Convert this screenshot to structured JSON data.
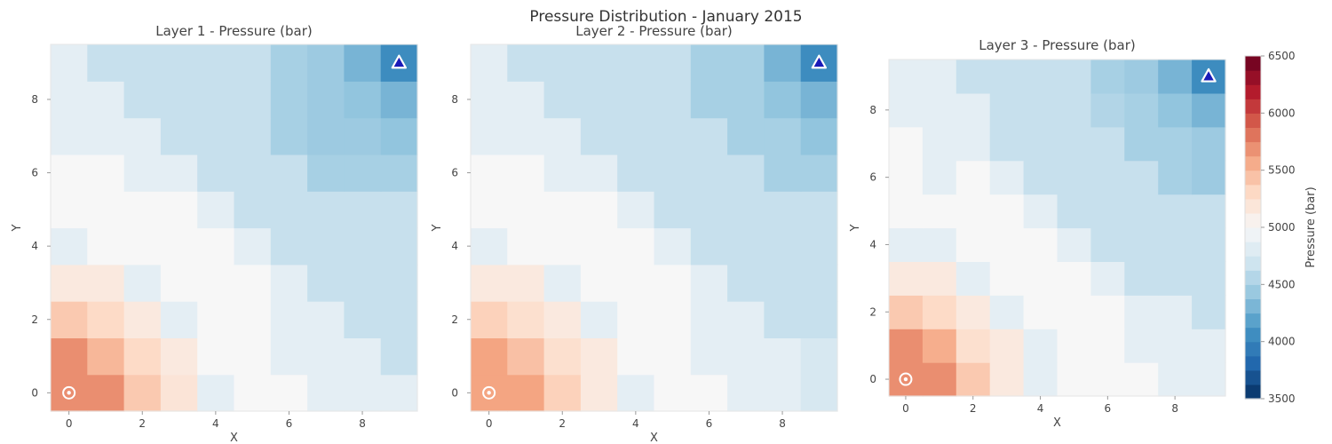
{
  "figure": {
    "title": "Pressure Distribution - January 2015"
  },
  "colormap": {
    "stops": [
      "#053061",
      "#2166ac",
      "#4393c3",
      "#92c5de",
      "#d1e5f0",
      "#f7f7f7",
      "#fddbc7",
      "#f4a582",
      "#d6604d",
      "#b2182b",
      "#67001f"
    ]
  },
  "colorbar": {
    "label": "Pressure (bar)",
    "vmin": 3500,
    "vmax": 6500,
    "ticks": [
      3500,
      4000,
      4500,
      5000,
      5500,
      6000,
      6500
    ],
    "tick_labels": [
      "3500",
      "4000",
      "4500",
      "5000",
      "5500",
      "6000",
      "6500"
    ],
    "levels": 24
  },
  "chart_data": [
    {
      "type": "heatmap",
      "title": "Layer 1 - Pressure (bar)",
      "xlabel": "X",
      "ylabel": "Y",
      "xticks": [
        "0",
        "2",
        "4",
        "6",
        "8"
      ],
      "yticks": [
        "0",
        "2",
        "4",
        "6",
        "8"
      ],
      "xlim": [
        -0.5,
        9.5
      ],
      "ylim": [
        -0.5,
        9.5
      ],
      "producer": {
        "x": 0,
        "y": 0
      },
      "injector": {
        "x": 9,
        "y": 9
      },
      "values": [
        [
          5700,
          5700,
          5400,
          5200,
          4850,
          5000,
          5000,
          4850,
          4850,
          4850
        ],
        [
          5700,
          5500,
          5300,
          5150,
          5000,
          5000,
          4850,
          4850,
          4850,
          4650
        ],
        [
          5400,
          5300,
          5150,
          4850,
          5000,
          5000,
          4850,
          4850,
          4650,
          4650
        ],
        [
          5150,
          5150,
          4850,
          5000,
          5000,
          5000,
          4850,
          4650,
          4650,
          4650
        ],
        [
          4850,
          5000,
          5000,
          5000,
          5000,
          4850,
          4650,
          4650,
          4650,
          4650
        ],
        [
          5000,
          5000,
          5000,
          5000,
          4850,
          4650,
          4650,
          4650,
          4650,
          4650
        ],
        [
          5000,
          5000,
          4850,
          4850,
          4650,
          4650,
          4650,
          4500,
          4500,
          4500
        ],
        [
          4850,
          4850,
          4850,
          4650,
          4650,
          4650,
          4500,
          4450,
          4450,
          4400
        ],
        [
          4850,
          4850,
          4650,
          4650,
          4650,
          4650,
          4500,
          4450,
          4400,
          4300
        ],
        [
          4850,
          4650,
          4650,
          4650,
          4650,
          4650,
          4500,
          4450,
          4300,
          4050
        ]
      ]
    },
    {
      "type": "heatmap",
      "title": "Layer 2 - Pressure (bar)",
      "xlabel": "X",
      "ylabel": "Y",
      "xticks": [
        "0",
        "2",
        "4",
        "6",
        "8"
      ],
      "yticks": [
        "0",
        "2",
        "4",
        "6",
        "8"
      ],
      "xlim": [
        -0.5,
        9.5
      ],
      "ylim": [
        -0.5,
        9.5
      ],
      "producer": {
        "x": 0,
        "y": 0
      },
      "injector": {
        "x": 9,
        "y": 9
      },
      "values": [
        [
          5600,
          5600,
          5350,
          5150,
          4850,
          5000,
          5000,
          4850,
          4850,
          4750
        ],
        [
          5600,
          5450,
          5250,
          5150,
          5000,
          5000,
          4850,
          4850,
          4850,
          4750
        ],
        [
          5350,
          5250,
          5150,
          4850,
          5000,
          5000,
          4850,
          4850,
          4650,
          4650
        ],
        [
          5150,
          5150,
          4850,
          5000,
          5000,
          5000,
          4850,
          4650,
          4650,
          4650
        ],
        [
          4850,
          5000,
          5000,
          5000,
          5000,
          4850,
          4650,
          4650,
          4650,
          4650
        ],
        [
          5000,
          5000,
          5000,
          5000,
          4850,
          4650,
          4650,
          4650,
          4650,
          4650
        ],
        [
          5000,
          5000,
          4850,
          4850,
          4650,
          4650,
          4650,
          4650,
          4500,
          4500
        ],
        [
          4850,
          4850,
          4850,
          4650,
          4650,
          4650,
          4650,
          4500,
          4500,
          4400
        ],
        [
          4850,
          4850,
          4650,
          4650,
          4650,
          4650,
          4500,
          4500,
          4400,
          4300
        ],
        [
          4850,
          4650,
          4650,
          4650,
          4650,
          4650,
          4500,
          4500,
          4300,
          4050
        ]
      ]
    },
    {
      "type": "heatmap",
      "title": "Layer 3 - Pressure (bar)",
      "xlabel": "X",
      "ylabel": "Y",
      "xticks": [
        "0",
        "2",
        "4",
        "6",
        "8"
      ],
      "yticks": [
        "0",
        "2",
        "4",
        "6",
        "8"
      ],
      "xlim": [
        -0.5,
        9.5
      ],
      "ylim": [
        -0.5,
        9.5
      ],
      "producer": {
        "x": 0,
        "y": 0
      },
      "injector": {
        "x": 9,
        "y": 9
      },
      "values": [
        [
          5700,
          5700,
          5400,
          5150,
          4850,
          5000,
          5000,
          5000,
          4850,
          4850
        ],
        [
          5700,
          5550,
          5250,
          5150,
          4850,
          5000,
          5000,
          4850,
          4850,
          4850
        ],
        [
          5400,
          5300,
          5150,
          4850,
          5000,
          5000,
          5000,
          4850,
          4850,
          4650
        ],
        [
          5150,
          5150,
          4850,
          5000,
          5000,
          5000,
          4850,
          4650,
          4650,
          4650
        ],
        [
          4850,
          4850,
          5000,
          5000,
          5000,
          4850,
          4650,
          4650,
          4650,
          4650
        ],
        [
          5000,
          5000,
          5000,
          5000,
          4850,
          4650,
          4650,
          4650,
          4650,
          4650
        ],
        [
          5000,
          4850,
          5000,
          4850,
          4650,
          4650,
          4650,
          4650,
          4500,
          4450
        ],
        [
          5000,
          4850,
          4850,
          4650,
          4650,
          4650,
          4650,
          4500,
          4500,
          4450
        ],
        [
          4850,
          4850,
          4850,
          4650,
          4650,
          4650,
          4550,
          4500,
          4400,
          4300
        ],
        [
          4850,
          4850,
          4650,
          4650,
          4650,
          4650,
          4500,
          4450,
          4300,
          4050
        ]
      ]
    }
  ]
}
